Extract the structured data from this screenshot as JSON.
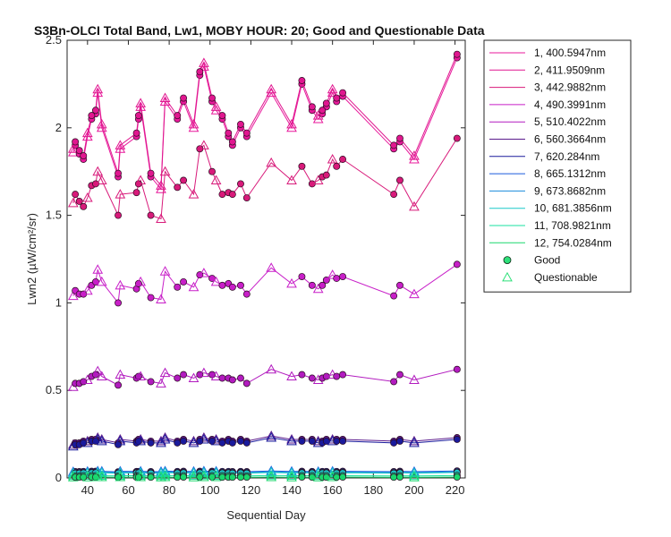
{
  "chart_data": {
    "type": "line",
    "title": "S3Bn-OLCI Total Band, Lw1, MOBY HOUR: 20;  Good and Questionable Data",
    "xlabel": "Sequential Day",
    "ylabel": "Lwn2 (µW/cm²/sr)",
    "xlim": [
      30,
      225
    ],
    "ylim": [
      0,
      2.5
    ],
    "xticks": [
      40,
      60,
      80,
      100,
      120,
      140,
      160,
      180,
      200,
      220
    ],
    "xtick_labels": [
      "40",
      "60",
      "80",
      "100",
      "120",
      "140",
      "160",
      "180",
      "200",
      "220"
    ],
    "yticks": [
      0,
      0.5,
      1,
      1.5,
      2,
      2.5
    ],
    "ytick_labels": [
      "0",
      "0.5",
      "1",
      "1.5",
      "2",
      "2.5"
    ],
    "grid": false,
    "legend_position": "outside-right",
    "x": [
      33,
      34,
      36,
      38,
      40,
      42,
      44,
      45,
      47,
      55,
      56,
      64,
      65,
      66,
      71,
      76,
      78,
      84,
      87,
      92,
      95,
      97,
      101,
      103,
      106,
      109,
      111,
      115,
      118,
      130,
      140,
      145,
      150,
      153,
      155,
      157,
      160,
      162,
      165,
      190,
      193,
      200,
      221
    ],
    "series": [
      {
        "name": "1, 400.5947nm",
        "color": "#e8199b",
        "values": [
          1.86,
          1.9,
          1.85,
          1.82,
          1.95,
          2.05,
          2.08,
          2.2,
          2.0,
          1.72,
          1.88,
          1.95,
          2.05,
          2.12,
          1.72,
          1.65,
          2.15,
          2.05,
          2.15,
          2.0,
          2.3,
          2.35,
          2.15,
          2.1,
          2.05,
          1.95,
          1.9,
          2.0,
          1.95,
          2.2,
          2.0,
          2.25,
          2.1,
          2.05,
          2.08,
          2.12,
          2.2,
          2.15,
          2.18,
          1.88,
          1.92,
          1.82,
          2.4
        ]
      },
      {
        "name": "2, 411.9509nm",
        "color": "#e0178f",
        "values": [
          1.88,
          1.92,
          1.87,
          1.84,
          1.97,
          2.07,
          2.1,
          2.22,
          2.02,
          1.74,
          1.9,
          1.97,
          2.07,
          2.14,
          1.74,
          1.67,
          2.17,
          2.07,
          2.17,
          2.02,
          2.32,
          2.37,
          2.17,
          2.12,
          2.07,
          1.97,
          1.92,
          2.02,
          1.97,
          2.22,
          2.02,
          2.27,
          2.12,
          2.07,
          2.1,
          2.14,
          2.22,
          2.17,
          2.2,
          1.9,
          1.94,
          1.84,
          2.42
        ]
      },
      {
        "name": "3, 442.9882nm",
        "color": "#d81a7a",
        "values": [
          1.57,
          1.62,
          1.58,
          1.55,
          1.6,
          1.67,
          1.68,
          1.75,
          1.7,
          1.5,
          1.62,
          1.63,
          1.68,
          1.7,
          1.5,
          1.48,
          1.75,
          1.66,
          1.7,
          1.62,
          1.88,
          1.9,
          1.75,
          1.7,
          1.62,
          1.63,
          1.62,
          1.68,
          1.6,
          1.8,
          1.7,
          1.78,
          1.68,
          1.7,
          1.72,
          1.73,
          1.82,
          1.78,
          1.82,
          1.62,
          1.7,
          1.55,
          1.94
        ]
      },
      {
        "name": "4, 490.3991nm",
        "color": "#c81fc8",
        "values": [
          1.04,
          1.07,
          1.05,
          1.05,
          1.07,
          1.1,
          1.12,
          1.19,
          1.12,
          1.0,
          1.1,
          1.08,
          1.11,
          1.12,
          1.03,
          1.02,
          1.18,
          1.09,
          1.12,
          1.09,
          1.16,
          1.17,
          1.14,
          1.12,
          1.1,
          1.11,
          1.09,
          1.1,
          1.05,
          1.2,
          1.11,
          1.15,
          1.1,
          1.08,
          1.1,
          1.13,
          1.16,
          1.14,
          1.15,
          1.04,
          1.1,
          1.05,
          1.22
        ]
      },
      {
        "name": "5, 510.4022nm",
        "color": "#b21bbf",
        "values": [
          0.52,
          0.54,
          0.54,
          0.55,
          0.56,
          0.58,
          0.59,
          0.61,
          0.58,
          0.53,
          0.59,
          0.57,
          0.58,
          0.58,
          0.55,
          0.54,
          0.6,
          0.57,
          0.59,
          0.57,
          0.59,
          0.6,
          0.59,
          0.58,
          0.57,
          0.57,
          0.56,
          0.57,
          0.54,
          0.62,
          0.58,
          0.59,
          0.57,
          0.56,
          0.57,
          0.58,
          0.59,
          0.58,
          0.59,
          0.55,
          0.59,
          0.56,
          0.62
        ]
      },
      {
        "name": "6, 560.3664nm",
        "color": "#5a1a8c",
        "values": [
          0.19,
          0.2,
          0.2,
          0.21,
          0.21,
          0.22,
          0.22,
          0.23,
          0.22,
          0.2,
          0.22,
          0.21,
          0.22,
          0.22,
          0.21,
          0.21,
          0.23,
          0.21,
          0.22,
          0.21,
          0.22,
          0.23,
          0.22,
          0.22,
          0.21,
          0.22,
          0.21,
          0.22,
          0.21,
          0.24,
          0.22,
          0.22,
          0.22,
          0.21,
          0.21,
          0.22,
          0.22,
          0.22,
          0.22,
          0.21,
          0.22,
          0.21,
          0.23
        ]
      },
      {
        "name": "7,  620.284nm",
        "color": "#1a1a9c",
        "values": [
          0.18,
          0.19,
          0.19,
          0.2,
          0.2,
          0.21,
          0.21,
          0.22,
          0.21,
          0.19,
          0.21,
          0.2,
          0.21,
          0.21,
          0.2,
          0.2,
          0.22,
          0.2,
          0.21,
          0.2,
          0.21,
          0.22,
          0.21,
          0.21,
          0.2,
          0.21,
          0.2,
          0.21,
          0.2,
          0.23,
          0.21,
          0.21,
          0.21,
          0.2,
          0.2,
          0.21,
          0.21,
          0.21,
          0.21,
          0.2,
          0.21,
          0.2,
          0.22
        ]
      },
      {
        "name": "8, 665.1312nm",
        "color": "#1a5adc",
        "values": [
          0.035,
          0.036,
          0.036,
          0.037,
          0.037,
          0.038,
          0.038,
          0.039,
          0.038,
          0.035,
          0.038,
          0.037,
          0.037,
          0.038,
          0.036,
          0.036,
          0.039,
          0.037,
          0.038,
          0.037,
          0.038,
          0.039,
          0.038,
          0.038,
          0.037,
          0.037,
          0.036,
          0.037,
          0.036,
          0.04,
          0.037,
          0.038,
          0.037,
          0.036,
          0.037,
          0.037,
          0.038,
          0.037,
          0.038,
          0.036,
          0.038,
          0.036,
          0.04
        ]
      },
      {
        "name": "9, 673.8682nm",
        "color": "#1a8cdc",
        "values": [
          0.03,
          0.031,
          0.031,
          0.032,
          0.032,
          0.033,
          0.033,
          0.034,
          0.033,
          0.03,
          0.033,
          0.032,
          0.032,
          0.033,
          0.031,
          0.031,
          0.034,
          0.032,
          0.033,
          0.032,
          0.033,
          0.034,
          0.033,
          0.033,
          0.032,
          0.032,
          0.031,
          0.032,
          0.031,
          0.035,
          0.032,
          0.033,
          0.032,
          0.031,
          0.032,
          0.032,
          0.033,
          0.032,
          0.033,
          0.031,
          0.033,
          0.031,
          0.035
        ]
      },
      {
        "name": "10, 681.3856nm",
        "color": "#1ac8c8",
        "values": [
          0.026,
          0.027,
          0.027,
          0.028,
          0.028,
          0.029,
          0.029,
          0.03,
          0.029,
          0.026,
          0.029,
          0.028,
          0.028,
          0.029,
          0.027,
          0.027,
          0.03,
          0.028,
          0.029,
          0.028,
          0.029,
          0.03,
          0.029,
          0.029,
          0.028,
          0.028,
          0.027,
          0.028,
          0.027,
          0.031,
          0.028,
          0.029,
          0.028,
          0.027,
          0.028,
          0.028,
          0.029,
          0.028,
          0.029,
          0.027,
          0.029,
          0.027,
          0.031
        ]
      },
      {
        "name": "11, 708.9821nm",
        "color": "#1ae0a0",
        "values": [
          0.012,
          0.012,
          0.012,
          0.013,
          0.013,
          0.013,
          0.013,
          0.014,
          0.013,
          0.012,
          0.013,
          0.013,
          0.013,
          0.013,
          0.012,
          0.012,
          0.014,
          0.013,
          0.013,
          0.013,
          0.013,
          0.014,
          0.013,
          0.013,
          0.013,
          0.013,
          0.012,
          0.013,
          0.012,
          0.014,
          0.013,
          0.013,
          0.013,
          0.012,
          0.013,
          0.013,
          0.013,
          0.013,
          0.013,
          0.012,
          0.013,
          0.012,
          0.014
        ]
      },
      {
        "name": "12, 754.0284nm",
        "color": "#1ad86e",
        "values": [
          0.004,
          0.004,
          0.004,
          0.004,
          0.004,
          0.005,
          0.005,
          0.005,
          0.005,
          0.004,
          0.005,
          0.004,
          0.004,
          0.005,
          0.004,
          0.004,
          0.005,
          0.004,
          0.005,
          0.004,
          0.005,
          0.005,
          0.005,
          0.005,
          0.004,
          0.004,
          0.004,
          0.004,
          0.004,
          0.005,
          0.004,
          0.005,
          0.004,
          0.004,
          0.004,
          0.004,
          0.005,
          0.004,
          0.005,
          0.004,
          0.005,
          0.004,
          0.005
        ]
      }
    ],
    "marker_legend": [
      {
        "name": "Good",
        "marker": "circle",
        "fill": "#2ee07a"
      },
      {
        "name": "Questionable",
        "marker": "triangle",
        "stroke": "#2ee07a"
      }
    ]
  }
}
